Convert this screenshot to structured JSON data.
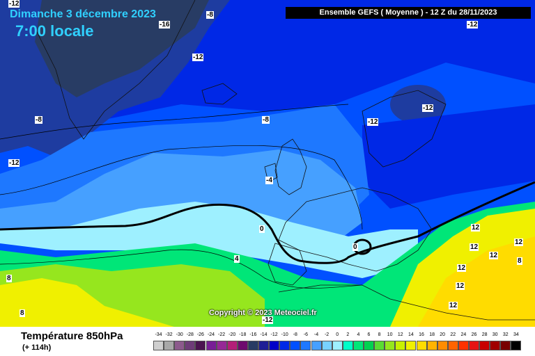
{
  "header": {
    "date": "Dimanche 3 décembre 2023",
    "time": "7:00 locale",
    "model_info": "Ensemble GEFS  ( Moyenne )  - 12 Z du 28/11/2023"
  },
  "copyright": "Copyright © 2023 Meteociel.fr",
  "footer": {
    "parameter": "Température 850hPa",
    "lead_time": "(+ 114h)"
  },
  "contour_labels": [
    "-12",
    "-8",
    "-16",
    "-12",
    "-12",
    "-8",
    "-8",
    "-12",
    "-12",
    "-12",
    "-4",
    "0",
    "0",
    "4",
    "8",
    "8",
    "-12",
    "12",
    "12",
    "12",
    "8",
    "12",
    "12",
    "12",
    "12"
  ],
  "legend": {
    "ticks": [
      "-34",
      "-32",
      "-30",
      "-28",
      "-26",
      "-24",
      "-22",
      "-20",
      "-18",
      "-16",
      "-14",
      "-12",
      "-10",
      "-8",
      "-6",
      "-4",
      "-2",
      "0",
      "2",
      "4",
      "6",
      "8",
      "10",
      "12",
      "14",
      "16",
      "18",
      "20",
      "22",
      "24",
      "26",
      "28",
      "30",
      "32",
      "34"
    ],
    "colors": [
      "#cfcfcf",
      "#a8a8a8",
      "#8c5a8c",
      "#6e3c78",
      "#4b1450",
      "#781e96",
      "#962896",
      "#b41e78",
      "#6e0a6e",
      "#283c64",
      "#1e1e96",
      "#0000c8",
      "#0028e6",
      "#0050ff",
      "#1e78ff",
      "#46a0ff",
      "#78d2ff",
      "#9ef0ff",
      "#00ffc8",
      "#00e678",
      "#00d250",
      "#5adc32",
      "#96e61e",
      "#c8f000",
      "#f0f000",
      "#ffdc00",
      "#ffb400",
      "#ff8c00",
      "#ff6400",
      "#ff3200",
      "#e61414",
      "#c80000",
      "#a00000",
      "#780000",
      "#000000"
    ]
  }
}
